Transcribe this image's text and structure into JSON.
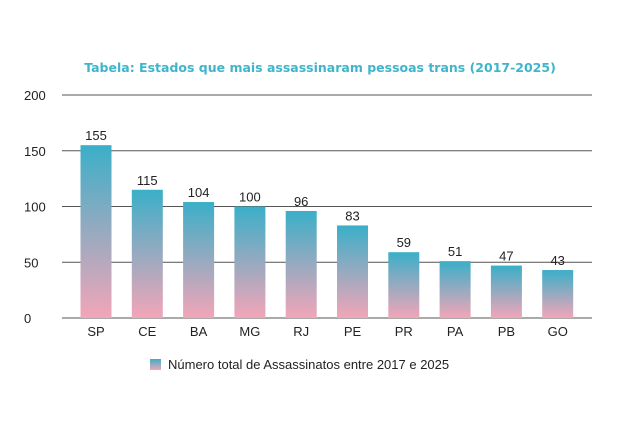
{
  "chart_data": {
    "type": "bar",
    "title": "Tabela: Estados que mais assassinaram pessoas trans (2017-2025)",
    "categories": [
      "SP",
      "CE",
      "BA",
      "MG",
      "RJ",
      "PE",
      "PR",
      "PA",
      "PB",
      "GO"
    ],
    "series": [
      {
        "name": "Número total de Assassinatos entre 2017 e 2025",
        "values": [
          155,
          115,
          104,
          100,
          96,
          83,
          59,
          51,
          47,
          43
        ]
      }
    ],
    "yticks": [
      0,
      50,
      100,
      150,
      200
    ],
    "ylim": [
      0,
      200
    ],
    "grid": true,
    "legend_position": "bottom",
    "colors": {
      "top": "#3aafc8",
      "bottom": "#f3a5b8",
      "title": "#3fb5cc"
    }
  }
}
